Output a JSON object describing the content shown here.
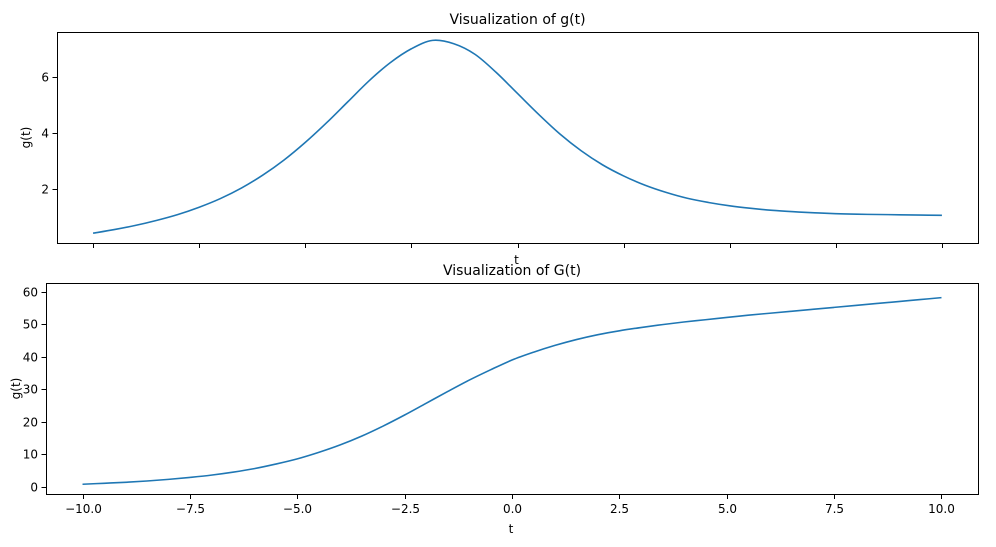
{
  "chart_data": [
    {
      "type": "line",
      "title": "Visualization of g(t)",
      "xlabel": "t",
      "ylabel": "g(t)",
      "xlim": [
        -10.85,
        10.85
      ],
      "ylim": [
        0.05,
        7.6
      ],
      "xticks": [
        -10.0,
        -7.5,
        -5.0,
        -2.5,
        0.0,
        2.5,
        5.0,
        7.5,
        10.0
      ],
      "xtick_labels_visible": false,
      "yticks": [
        2,
        4,
        6
      ],
      "ytick_labels": [
        "2",
        "4",
        "6"
      ],
      "grid": false,
      "series": [
        {
          "color": "#1f77b4",
          "x": [
            -10.0,
            -9.5,
            -9.0,
            -8.5,
            -8.0,
            -7.5,
            -7.0,
            -6.5,
            -6.0,
            -5.5,
            -5.0,
            -4.5,
            -4.0,
            -3.5,
            -3.0,
            -2.5,
            -2.0,
            -1.5,
            -1.0,
            -0.5,
            0.0,
            0.5,
            1.0,
            1.5,
            2.0,
            2.5,
            3.0,
            3.5,
            4.0,
            4.5,
            5.0,
            5.5,
            6.0,
            6.5,
            7.0,
            7.5,
            8.0,
            8.5,
            9.0,
            9.5,
            10.0
          ],
          "y": [
            0.4,
            0.53,
            0.68,
            0.86,
            1.07,
            1.33,
            1.64,
            2.02,
            2.48,
            3.02,
            3.65,
            4.35,
            5.1,
            5.85,
            6.5,
            7.0,
            7.3,
            7.18,
            6.8,
            6.15,
            5.4,
            4.65,
            3.95,
            3.35,
            2.85,
            2.45,
            2.12,
            1.86,
            1.65,
            1.5,
            1.38,
            1.29,
            1.22,
            1.17,
            1.13,
            1.1,
            1.08,
            1.07,
            1.06,
            1.05,
            1.04
          ]
        }
      ]
    },
    {
      "type": "line",
      "title": "Visualization of G(t)",
      "xlabel": "t",
      "ylabel": "g(t)",
      "xlim": [
        -10.85,
        10.85
      ],
      "ylim": [
        -2.2,
        62.7
      ],
      "xticks": [
        -10.0,
        -7.5,
        -5.0,
        -2.5,
        0.0,
        2.5,
        5.0,
        7.5,
        10.0
      ],
      "xtick_labels": [
        "−10.0",
        "−7.5",
        "−5.0",
        "−2.5",
        "0.0",
        "2.5",
        "5.0",
        "7.5",
        "10.0"
      ],
      "yticks": [
        0,
        10,
        20,
        30,
        40,
        50,
        60
      ],
      "ytick_labels": [
        "0",
        "10",
        "20",
        "30",
        "40",
        "50",
        "60"
      ],
      "grid": false,
      "series": [
        {
          "color": "#1f77b4",
          "x": [
            -10.0,
            -9.5,
            -9.0,
            -8.5,
            -8.0,
            -7.5,
            -7.0,
            -6.5,
            -6.0,
            -5.5,
            -5.0,
            -4.5,
            -4.0,
            -3.5,
            -3.0,
            -2.5,
            -2.0,
            -1.5,
            -1.0,
            -0.5,
            0.0,
            0.5,
            1.0,
            1.5,
            2.0,
            2.5,
            3.0,
            3.5,
            4.0,
            4.5,
            5.0,
            5.5,
            6.0,
            6.5,
            7.0,
            7.5,
            8.0,
            8.5,
            9.0,
            9.5,
            10.0
          ],
          "y": [
            0.8,
            1.1,
            1.4,
            1.8,
            2.3,
            2.9,
            3.6,
            4.5,
            5.6,
            7.0,
            8.6,
            10.6,
            12.9,
            15.6,
            18.7,
            22.1,
            25.7,
            29.3,
            32.8,
            36.0,
            39.0,
            41.4,
            43.5,
            45.3,
            46.8,
            48.0,
            49.0,
            49.9,
            50.7,
            51.4,
            52.1,
            52.8,
            53.4,
            54.0,
            54.6,
            55.2,
            55.8,
            56.4,
            57.0,
            57.6,
            58.2
          ]
        }
      ]
    }
  ]
}
